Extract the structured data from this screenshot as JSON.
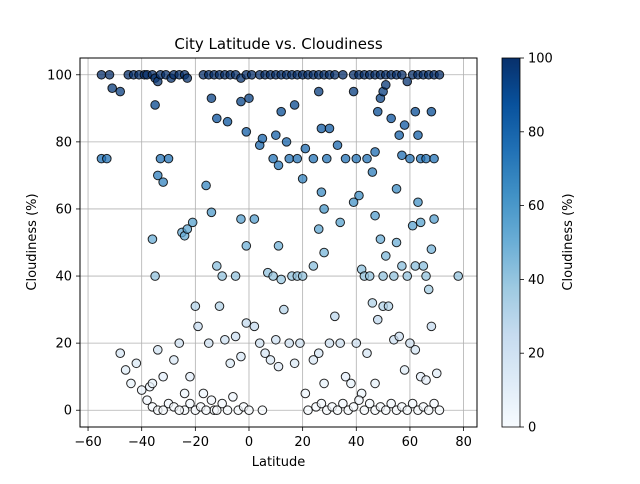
{
  "chart_data": {
    "type": "scatter",
    "title": "City Latitude vs. Cloudiness",
    "xlabel": "Latitude",
    "ylabel": "Cloudiness (%)",
    "xlim": [
      -63,
      85
    ],
    "ylim": [
      -5,
      105
    ],
    "xticks": [
      -60,
      -40,
      -20,
      0,
      20,
      40,
      60,
      80
    ],
    "yticks": [
      0,
      20,
      40,
      60,
      80,
      100
    ],
    "grid": true,
    "colormap": "Blues",
    "colorbar": {
      "label": "Cloudiness (%)",
      "range": [
        0,
        100
      ],
      "ticks": [
        0,
        20,
        40,
        60,
        80,
        100
      ],
      "colors": [
        "#f7fbff",
        "#deebf7",
        "#c6dbef",
        "#9ecae1",
        "#6baed6",
        "#4292c6",
        "#2171b5",
        "#08519c",
        "#08306b"
      ]
    },
    "marker_edge_color": "#000000",
    "marker_alpha": 0.75,
    "points": [
      [
        -55,
        100
      ],
      [
        -52,
        100
      ],
      [
        -51,
        96
      ],
      [
        -48,
        95
      ],
      [
        -45,
        100
      ],
      [
        -43,
        100
      ],
      [
        -41,
        100
      ],
      [
        -39,
        100
      ],
      [
        -38,
        100
      ],
      [
        -36,
        100
      ],
      [
        -35,
        99
      ],
      [
        -34,
        98
      ],
      [
        -33,
        100
      ],
      [
        -31,
        100
      ],
      [
        -29,
        99
      ],
      [
        -28,
        100
      ],
      [
        -26,
        100
      ],
      [
        -24,
        100
      ],
      [
        -23,
        99
      ],
      [
        -17,
        100
      ],
      [
        -15,
        100
      ],
      [
        -13,
        100
      ],
      [
        -11,
        100
      ],
      [
        -9,
        100
      ],
      [
        -7,
        100
      ],
      [
        -5,
        100
      ],
      [
        -3,
        99
      ],
      [
        -1,
        100
      ],
      [
        1,
        100
      ],
      [
        4,
        100
      ],
      [
        6,
        100
      ],
      [
        8,
        100
      ],
      [
        10,
        100
      ],
      [
        12,
        100
      ],
      [
        14,
        100
      ],
      [
        16,
        100
      ],
      [
        18,
        100
      ],
      [
        20,
        100
      ],
      [
        22,
        100
      ],
      [
        24,
        100
      ],
      [
        26,
        100
      ],
      [
        28,
        100
      ],
      [
        30,
        100
      ],
      [
        32,
        100
      ],
      [
        35,
        100
      ],
      [
        39,
        100
      ],
      [
        41,
        100
      ],
      [
        43,
        100
      ],
      [
        45,
        100
      ],
      [
        47,
        100
      ],
      [
        49,
        100
      ],
      [
        51,
        100
      ],
      [
        53,
        100
      ],
      [
        55,
        100
      ],
      [
        57,
        100
      ],
      [
        59,
        98
      ],
      [
        61,
        100
      ],
      [
        63,
        100
      ],
      [
        65,
        100
      ],
      [
        67,
        100
      ],
      [
        69,
        100
      ],
      [
        71,
        100
      ],
      [
        -55,
        75
      ],
      [
        -53,
        75
      ],
      [
        -35,
        91
      ],
      [
        -34,
        70
      ],
      [
        -33,
        75
      ],
      [
        -32,
        68
      ],
      [
        -30,
        75
      ],
      [
        -14,
        93
      ],
      [
        -12,
        87
      ],
      [
        -8,
        86
      ],
      [
        -3,
        92
      ],
      [
        -1,
        83
      ],
      [
        0,
        93
      ],
      [
        4,
        79
      ],
      [
        5,
        81
      ],
      [
        9,
        75
      ],
      [
        10,
        82
      ],
      [
        11,
        73
      ],
      [
        12,
        89
      ],
      [
        14,
        80
      ],
      [
        15,
        75
      ],
      [
        17,
        91
      ],
      [
        18,
        75
      ],
      [
        20,
        69
      ],
      [
        21,
        78
      ],
      [
        24,
        75
      ],
      [
        26,
        95
      ],
      [
        27,
        84
      ],
      [
        29,
        75
      ],
      [
        30,
        84
      ],
      [
        33,
        79
      ],
      [
        36,
        75
      ],
      [
        39,
        95
      ],
      [
        40,
        75
      ],
      [
        44,
        75
      ],
      [
        46,
        71
      ],
      [
        47,
        77
      ],
      [
        48,
        89
      ],
      [
        49,
        93
      ],
      [
        50,
        95
      ],
      [
        51,
        97
      ],
      [
        53,
        87
      ],
      [
        55,
        66
      ],
      [
        56,
        82
      ],
      [
        57,
        76
      ],
      [
        58,
        85
      ],
      [
        60,
        75
      ],
      [
        62,
        89
      ],
      [
        63,
        82
      ],
      [
        64,
        75
      ],
      [
        66,
        75
      ],
      [
        68,
        89
      ],
      [
        69,
        75
      ],
      [
        -36,
        51
      ],
      [
        -35,
        40
      ],
      [
        -25,
        53
      ],
      [
        -24,
        52
      ],
      [
        -23,
        54
      ],
      [
        -21,
        56
      ],
      [
        -16,
        67
      ],
      [
        -14,
        59
      ],
      [
        -12,
        43
      ],
      [
        -10,
        40
      ],
      [
        -5,
        40
      ],
      [
        -3,
        57
      ],
      [
        -1,
        49
      ],
      [
        2,
        57
      ],
      [
        7,
        41
      ],
      [
        9,
        40
      ],
      [
        11,
        49
      ],
      [
        12,
        39
      ],
      [
        16,
        40
      ],
      [
        18,
        40
      ],
      [
        20,
        40
      ],
      [
        24,
        43
      ],
      [
        26,
        54
      ],
      [
        27,
        65
      ],
      [
        28,
        47
      ],
      [
        28,
        60
      ],
      [
        34,
        56
      ],
      [
        39,
        62
      ],
      [
        41,
        64
      ],
      [
        42,
        42
      ],
      [
        43,
        40
      ],
      [
        45,
        40
      ],
      [
        47,
        58
      ],
      [
        49,
        51
      ],
      [
        50,
        40
      ],
      [
        51,
        46
      ],
      [
        54,
        40
      ],
      [
        55,
        50
      ],
      [
        57,
        43
      ],
      [
        59,
        40
      ],
      [
        61,
        55
      ],
      [
        62,
        43
      ],
      [
        63,
        62
      ],
      [
        64,
        56
      ],
      [
        65,
        43
      ],
      [
        66,
        40
      ],
      [
        67,
        36
      ],
      [
        68,
        48
      ],
      [
        69,
        57
      ],
      [
        78,
        40
      ],
      [
        -37,
        7
      ],
      [
        -36,
        8
      ],
      [
        -34,
        18
      ],
      [
        -32,
        10
      ],
      [
        -28,
        15
      ],
      [
        -26,
        20
      ],
      [
        -24,
        0
      ],
      [
        -22,
        10
      ],
      [
        -20,
        31
      ],
      [
        -19,
        25
      ],
      [
        -17,
        5
      ],
      [
        -15,
        20
      ],
      [
        -13,
        0
      ],
      [
        -11,
        31
      ],
      [
        -9,
        21
      ],
      [
        -7,
        14
      ],
      [
        -5,
        22
      ],
      [
        -3,
        16
      ],
      [
        -1,
        26
      ],
      [
        2,
        25
      ],
      [
        4,
        20
      ],
      [
        6,
        17
      ],
      [
        8,
        15
      ],
      [
        10,
        21
      ],
      [
        11,
        13
      ],
      [
        13,
        30
      ],
      [
        15,
        20
      ],
      [
        17,
        14
      ],
      [
        19,
        20
      ],
      [
        21,
        5
      ],
      [
        24,
        15
      ],
      [
        26,
        17
      ],
      [
        28,
        8
      ],
      [
        30,
        20
      ],
      [
        32,
        28
      ],
      [
        34,
        20
      ],
      [
        36,
        10
      ],
      [
        38,
        8
      ],
      [
        40,
        20
      ],
      [
        42,
        5
      ],
      [
        44,
        17
      ],
      [
        46,
        32
      ],
      [
        47,
        8
      ],
      [
        48,
        27
      ],
      [
        50,
        31
      ],
      [
        52,
        31
      ],
      [
        54,
        21
      ],
      [
        56,
        22
      ],
      [
        58,
        12
      ],
      [
        60,
        20
      ],
      [
        62,
        18
      ],
      [
        64,
        10
      ],
      [
        66,
        9
      ],
      [
        68,
        25
      ],
      [
        70,
        11
      ],
      [
        -48,
        17
      ],
      [
        -46,
        12
      ],
      [
        -44,
        8
      ],
      [
        -42,
        14
      ],
      [
        -40,
        6
      ],
      [
        -38,
        3
      ],
      [
        -36,
        1
      ],
      [
        -34,
        0
      ],
      [
        -32,
        0
      ],
      [
        -30,
        2
      ],
      [
        -28,
        1
      ],
      [
        -26,
        0
      ],
      [
        -24,
        5
      ],
      [
        -22,
        2
      ],
      [
        -20,
        0
      ],
      [
        -18,
        1
      ],
      [
        -16,
        0
      ],
      [
        -14,
        3
      ],
      [
        -12,
        0
      ],
      [
        -10,
        2
      ],
      [
        -8,
        0
      ],
      [
        -6,
        4
      ],
      [
        -4,
        0
      ],
      [
        -2,
        1
      ],
      [
        0,
        0
      ],
      [
        5,
        0
      ],
      [
        22,
        0
      ],
      [
        25,
        1
      ],
      [
        27,
        2
      ],
      [
        29,
        0
      ],
      [
        31,
        1
      ],
      [
        33,
        0
      ],
      [
        35,
        2
      ],
      [
        37,
        0
      ],
      [
        39,
        1
      ],
      [
        41,
        3
      ],
      [
        43,
        0
      ],
      [
        45,
        2
      ],
      [
        47,
        0
      ],
      [
        49,
        1
      ],
      [
        51,
        0
      ],
      [
        53,
        2
      ],
      [
        55,
        0
      ],
      [
        57,
        1
      ],
      [
        59,
        0
      ],
      [
        61,
        2
      ],
      [
        63,
        0
      ],
      [
        65,
        1
      ],
      [
        67,
        0
      ],
      [
        69,
        2
      ],
      [
        71,
        0
      ]
    ]
  }
}
